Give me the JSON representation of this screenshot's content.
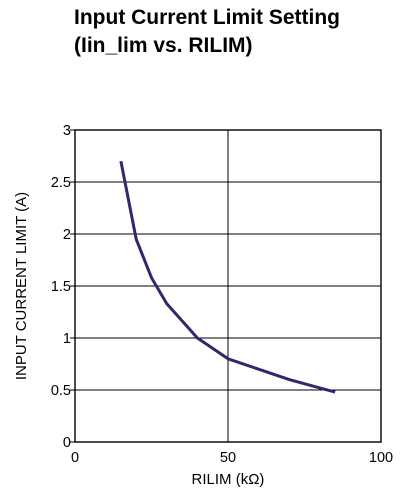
{
  "chart_data": {
    "type": "line",
    "title": "Input Current Limit Setting",
    "subtitle": "(Iin_lim vs. RILIM)",
    "xlabel": "RILIM (kΩ)",
    "ylabel": "INPUT CURRENT LIMIT (A)",
    "xlim": [
      0,
      100
    ],
    "ylim": [
      0,
      3
    ],
    "x_ticks": [
      "0",
      "50",
      "100"
    ],
    "y_ticks": [
      "0",
      "0.5",
      "1",
      "1.5",
      "2",
      "2.5",
      "3"
    ],
    "grid": true,
    "series": [
      {
        "color": "#2b2b6b",
        "x": [
          15,
          20,
          25,
          30,
          40,
          50,
          60,
          70,
          80,
          85
        ],
        "y": [
          2.7,
          1.95,
          1.58,
          1.33,
          1.0,
          0.8,
          0.7,
          0.6,
          0.52,
          0.48
        ]
      }
    ]
  }
}
